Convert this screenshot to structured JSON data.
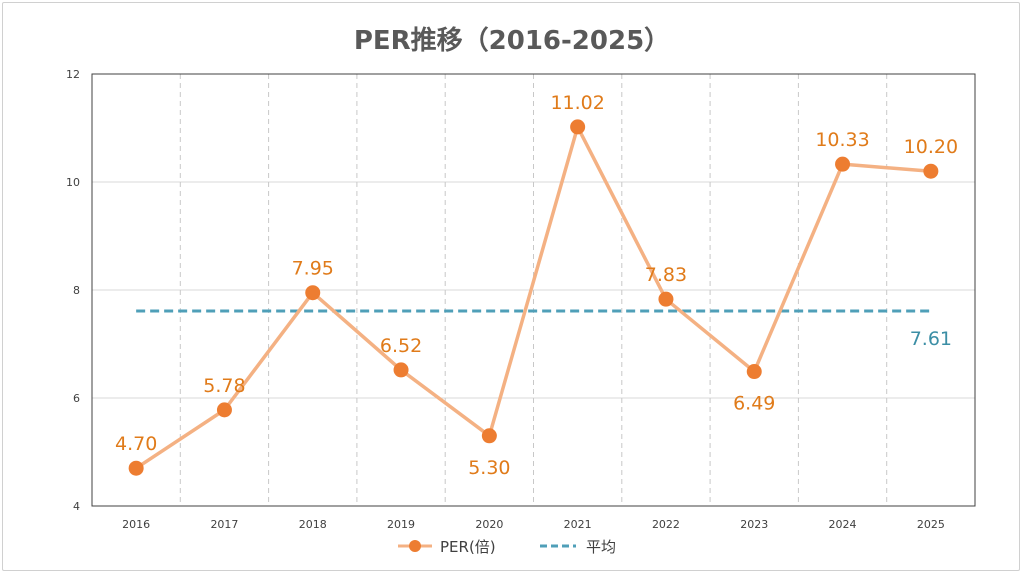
{
  "chart_data": {
    "type": "line",
    "title": "PER推移（2016-2025）",
    "categories": [
      "2016",
      "2017",
      "2018",
      "2019",
      "2020",
      "2021",
      "2022",
      "2023",
      "2024",
      "2025"
    ],
    "ylim": [
      4,
      12
    ],
    "yticks": [
      "4",
      "6",
      "8",
      "10",
      "12"
    ],
    "grid": true,
    "legend_position": "bottom",
    "series": [
      {
        "name": "PER(倍)",
        "values": [
          4.7,
          5.78,
          7.95,
          6.52,
          5.3,
          11.02,
          7.83,
          6.49,
          10.33,
          10.2
        ],
        "labels": [
          "4.70",
          "5.78",
          "7.95",
          "6.52",
          "5.30",
          "11.02",
          "7.83",
          "6.49",
          "10.33",
          "10.20"
        ],
        "line_color": "#f4b183",
        "marker_color": "#ed7d31"
      },
      {
        "name": "平均",
        "value": 7.61,
        "label": "7.61",
        "line_color": "#4f9fb8",
        "style": "dashed"
      }
    ]
  }
}
